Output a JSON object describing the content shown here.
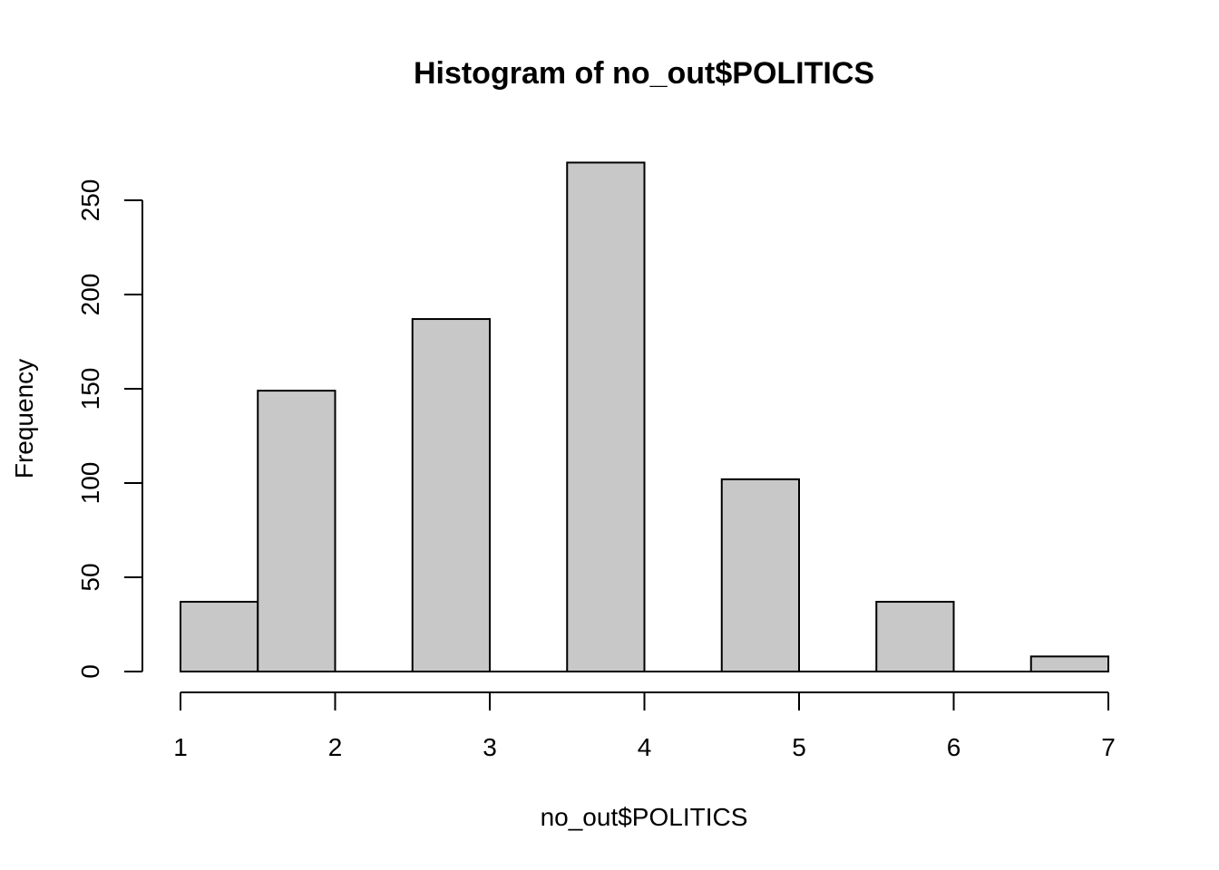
{
  "chart_data": {
    "type": "bar",
    "title": "Histogram of no_out$POLITICS",
    "xlabel": "no_out$POLITICS",
    "ylabel": "Frequency",
    "bins": [
      {
        "x0": 1.0,
        "x1": 1.5,
        "count": 37
      },
      {
        "x0": 1.5,
        "x1": 2.0,
        "count": 149
      },
      {
        "x0": 2.0,
        "x1": 2.5,
        "count": 0
      },
      {
        "x0": 2.5,
        "x1": 3.0,
        "count": 187
      },
      {
        "x0": 3.0,
        "x1": 3.5,
        "count": 0
      },
      {
        "x0": 3.5,
        "x1": 4.0,
        "count": 270
      },
      {
        "x0": 4.0,
        "x1": 4.5,
        "count": 0
      },
      {
        "x0": 4.5,
        "x1": 5.0,
        "count": 102
      },
      {
        "x0": 5.0,
        "x1": 5.5,
        "count": 0
      },
      {
        "x0": 5.5,
        "x1": 6.0,
        "count": 37
      },
      {
        "x0": 6.0,
        "x1": 6.5,
        "count": 0
      },
      {
        "x0": 6.5,
        "x1": 7.0,
        "count": 8
      }
    ],
    "xlim": [
      1,
      7
    ],
    "ylim": [
      0,
      270
    ],
    "x_ticks": [
      1,
      2,
      3,
      4,
      5,
      6,
      7
    ],
    "y_ticks": [
      0,
      50,
      100,
      150,
      200,
      250
    ],
    "bar_color": "#c8c8c8",
    "edge_color": "#000000",
    "grid": false,
    "legend": "none"
  }
}
